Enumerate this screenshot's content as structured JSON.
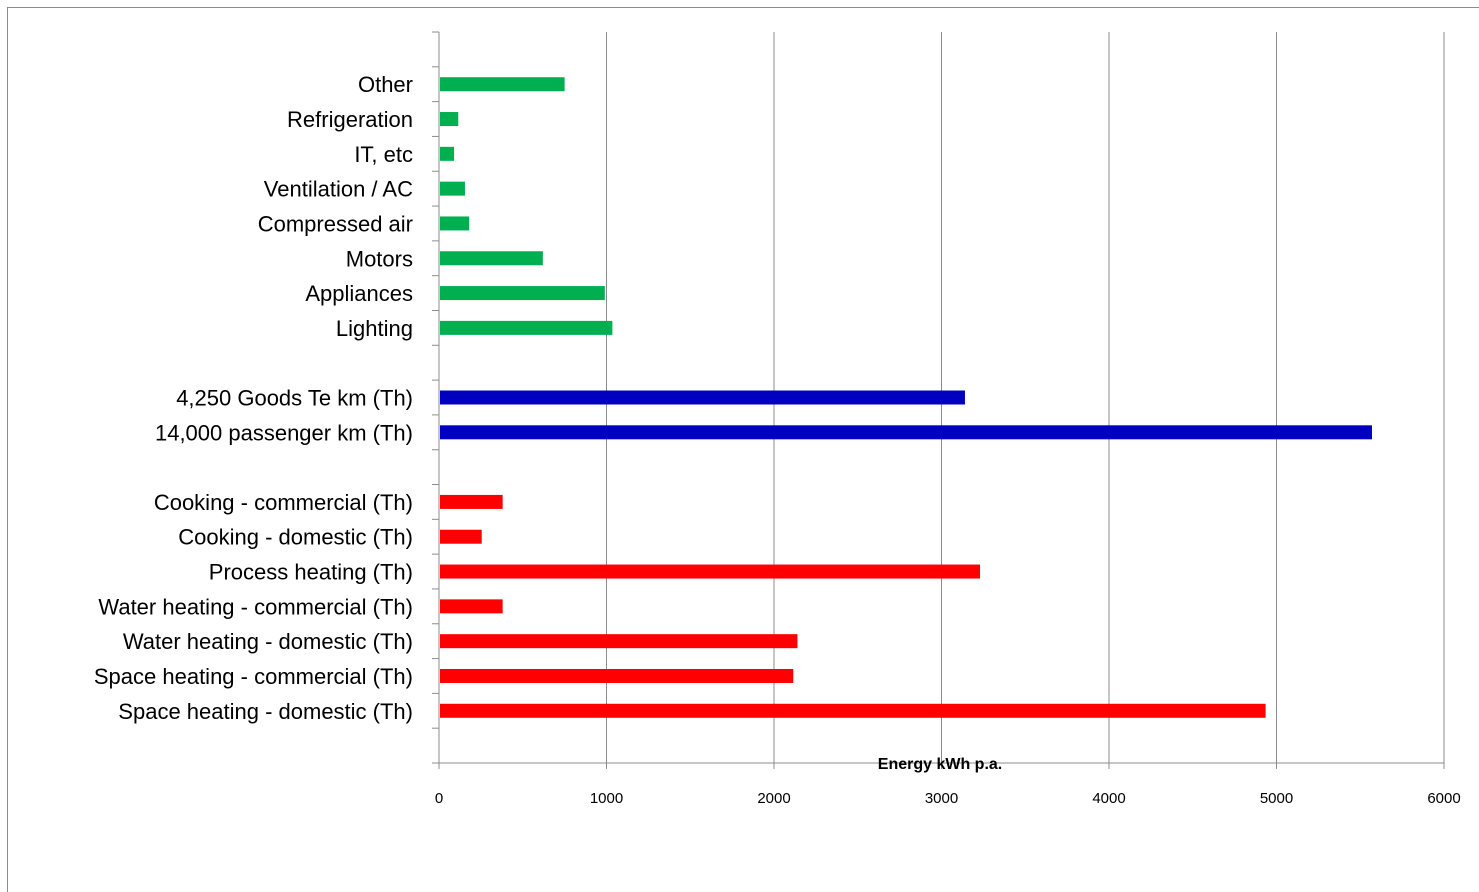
{
  "chart_data": {
    "type": "bar",
    "orientation": "horizontal",
    "xlabel": "Energy kWh p.a.",
    "xlim": [
      0,
      6000
    ],
    "xticks": [
      "0",
      "1000",
      "2000",
      "3000",
      "4000",
      "5000",
      "6000"
    ],
    "grid": "vertical major gridlines",
    "legend": "none",
    "categories": [
      {
        "label": "",
        "value": null,
        "color": ""
      },
      {
        "label": "Other",
        "value": 750,
        "color": "#00b050"
      },
      {
        "label": "Refrigeration",
        "value": 115,
        "color": "#00b050"
      },
      {
        "label": "IT, etc",
        "value": 90,
        "color": "#00b050"
      },
      {
        "label": "Ventilation / AC",
        "value": 155,
        "color": "#00b050"
      },
      {
        "label": "Compressed air",
        "value": 180,
        "color": "#00b050"
      },
      {
        "label": "Motors",
        "value": 620,
        "color": "#00b050"
      },
      {
        "label": "Appliances",
        "value": 990,
        "color": "#00b050"
      },
      {
        "label": "Lighting",
        "value": 1035,
        "color": "#00b050"
      },
      {
        "label": "",
        "value": null,
        "color": ""
      },
      {
        "label": "4,250 Goods Te km (Th)",
        "value": 3140,
        "color": "#0000c0"
      },
      {
        "label": "14,000 passenger km (Th)",
        "value": 5570,
        "color": "#0000c0"
      },
      {
        "label": "",
        "value": null,
        "color": ""
      },
      {
        "label": "Cooking - commercial (Th)",
        "value": 380,
        "color": "#ff0000"
      },
      {
        "label": "Cooking - domestic (Th)",
        "value": 255,
        "color": "#ff0000"
      },
      {
        "label": "Process heating (Th)",
        "value": 3230,
        "color": "#ff0000"
      },
      {
        "label": "Water heating - commercial (Th)",
        "value": 380,
        "color": "#ff0000"
      },
      {
        "label": "Water heating - domestic (Th)",
        "value": 2140,
        "color": "#ff0000"
      },
      {
        "label": "Space heating - commercial (Th)",
        "value": 2115,
        "color": "#ff0000"
      },
      {
        "label": "Space heating - domestic (Th)",
        "value": 4935,
        "color": "#ff0000"
      },
      {
        "label": "",
        "value": null,
        "color": ""
      }
    ]
  }
}
